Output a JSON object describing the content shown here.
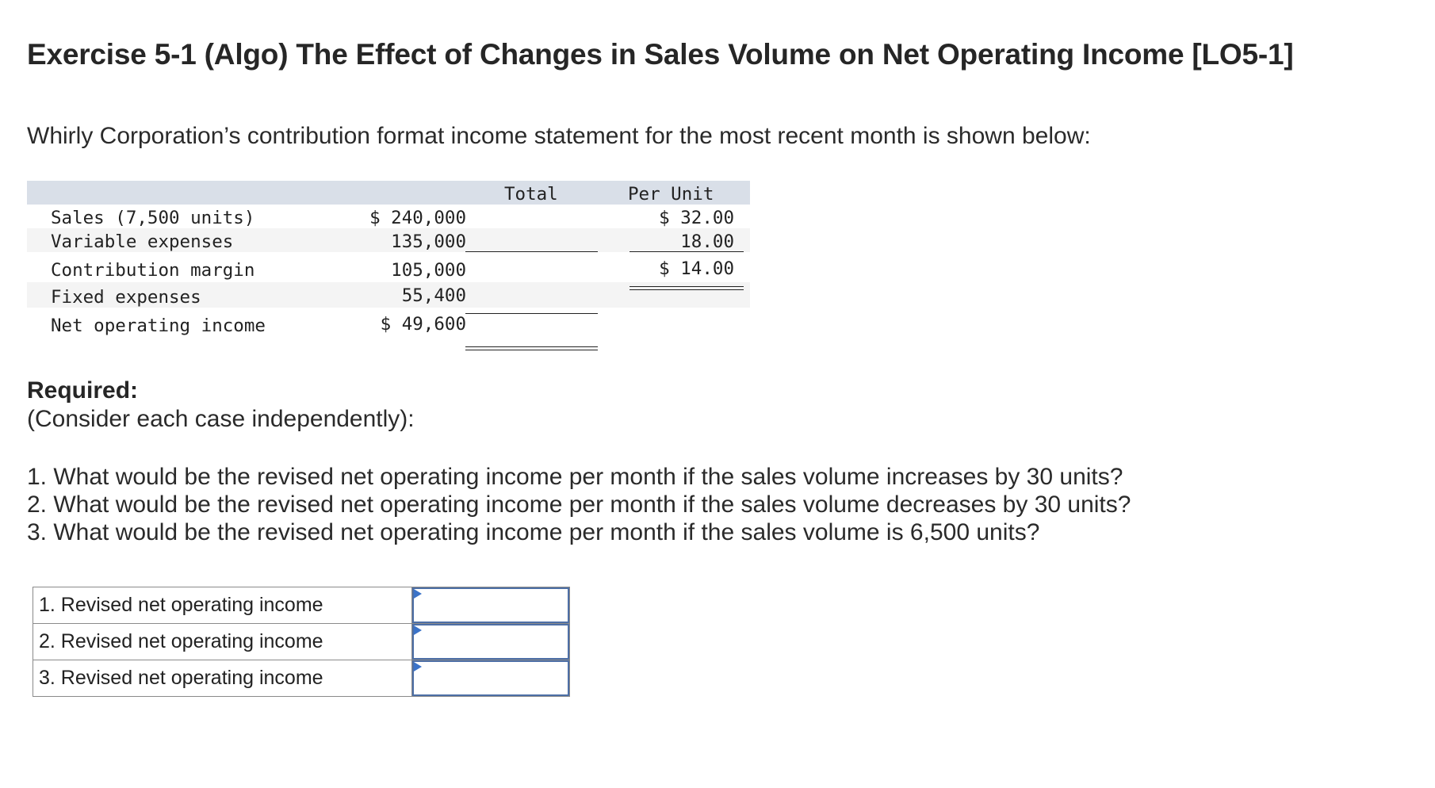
{
  "title": "Exercise 5-1 (Algo) The Effect of Changes in Sales Volume on Net Operating Income [LO5-1]",
  "intro": "Whirly Corporation’s contribution format income statement for the most recent month is shown below:",
  "statement": {
    "headers": {
      "total": "Total",
      "per_unit": "Per Unit"
    },
    "rows": [
      {
        "label": "Sales (7,500 units)",
        "total": "$ 240,000",
        "per_unit": "$ 32.00"
      },
      {
        "label": "Variable expenses",
        "total": "135,000",
        "per_unit": "18.00"
      },
      {
        "label": "Contribution margin",
        "total": "105,000",
        "per_unit": "$ 14.00"
      },
      {
        "label": "Fixed expenses",
        "total": "55,400",
        "per_unit": ""
      },
      {
        "label": "Net operating income",
        "total": "$ 49,600",
        "per_unit": ""
      }
    ]
  },
  "required": {
    "heading": "Required:",
    "subheading": "(Consider each case independently):",
    "questions": [
      "1. What would be the revised net operating income per month if the sales volume increases by 30 units?",
      "2. What would be the revised net operating income per month if the sales volume decreases by 30 units?",
      "3. What would be the revised net operating income per month if the sales volume is 6,500 units?"
    ]
  },
  "answers": [
    {
      "label": "1. Revised net operating income",
      "value": ""
    },
    {
      "label": "2. Revised net operating income",
      "value": ""
    },
    {
      "label": "3. Revised net operating income",
      "value": ""
    }
  ]
}
